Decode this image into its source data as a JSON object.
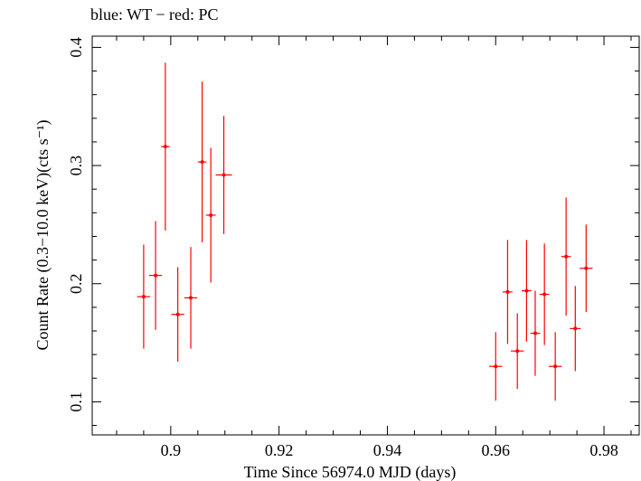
{
  "chart_data": {
    "type": "scatter",
    "title": "blue: WT − red: PC",
    "xlabel": "Time Since 56974.0 MJD (days)",
    "ylabel": "Count Rate (0.3−10.0 keV)(cts s⁻¹)",
    "xlim": [
      0.8855,
      0.9865
    ],
    "ylim": [
      0.072,
      0.4095
    ],
    "grid": false,
    "x_ticks": [
      0.9,
      0.92,
      0.94,
      0.96,
      0.98
    ],
    "x_tick_labels": [
      "0.9",
      "0.92",
      "0.94",
      "0.96",
      "0.98"
    ],
    "y_ticks": [
      0.1,
      0.2,
      0.3,
      0.4
    ],
    "y_tick_labels": [
      "0.1",
      "0.2",
      "0.3",
      "0.4"
    ],
    "series": [
      {
        "color": "#ff0000",
        "points": [
          {
            "x": 0.895,
            "xerr": 0.0012,
            "y": 0.189,
            "yerr": 0.044
          },
          {
            "x": 0.8972,
            "xerr": 0.0012,
            "y": 0.207,
            "yerr": 0.046
          },
          {
            "x": 0.899,
            "xerr": 0.0008,
            "y": 0.316,
            "yerr": 0.071
          },
          {
            "x": 0.9013,
            "xerr": 0.0012,
            "y": 0.174,
            "yerr": 0.04
          },
          {
            "x": 0.9037,
            "xerr": 0.0012,
            "y": 0.188,
            "yerr": 0.043
          },
          {
            "x": 0.9058,
            "xerr": 0.0008,
            "y": 0.303,
            "yerr": 0.068
          },
          {
            "x": 0.9074,
            "xerr": 0.0009,
            "y": 0.258,
            "yerr": 0.057
          },
          {
            "x": 0.9098,
            "xerr": 0.0015,
            "y": 0.292,
            "yerr": 0.05
          },
          {
            "x": 0.96,
            "xerr": 0.0012,
            "y": 0.13,
            "yerr": 0.029
          },
          {
            "x": 0.9622,
            "xerr": 0.0009,
            "y": 0.193,
            "yerr": 0.044
          },
          {
            "x": 0.964,
            "xerr": 0.0012,
            "y": 0.143,
            "yerr": 0.032
          },
          {
            "x": 0.9657,
            "xerr": 0.0009,
            "y": 0.194,
            "yerr": 0.043
          },
          {
            "x": 0.9673,
            "xerr": 0.0009,
            "y": 0.158,
            "yerr": 0.036
          },
          {
            "x": 0.969,
            "xerr": 0.0009,
            "y": 0.191,
            "yerr": 0.043
          },
          {
            "x": 0.971,
            "xerr": 0.0012,
            "y": 0.13,
            "yerr": 0.029
          },
          {
            "x": 0.973,
            "xerr": 0.0009,
            "y": 0.223,
            "yerr": 0.05
          },
          {
            "x": 0.9747,
            "xerr": 0.001,
            "y": 0.162,
            "yerr": 0.036
          },
          {
            "x": 0.9767,
            "xerr": 0.0012,
            "y": 0.213,
            "yerr": 0.037
          }
        ]
      }
    ]
  }
}
